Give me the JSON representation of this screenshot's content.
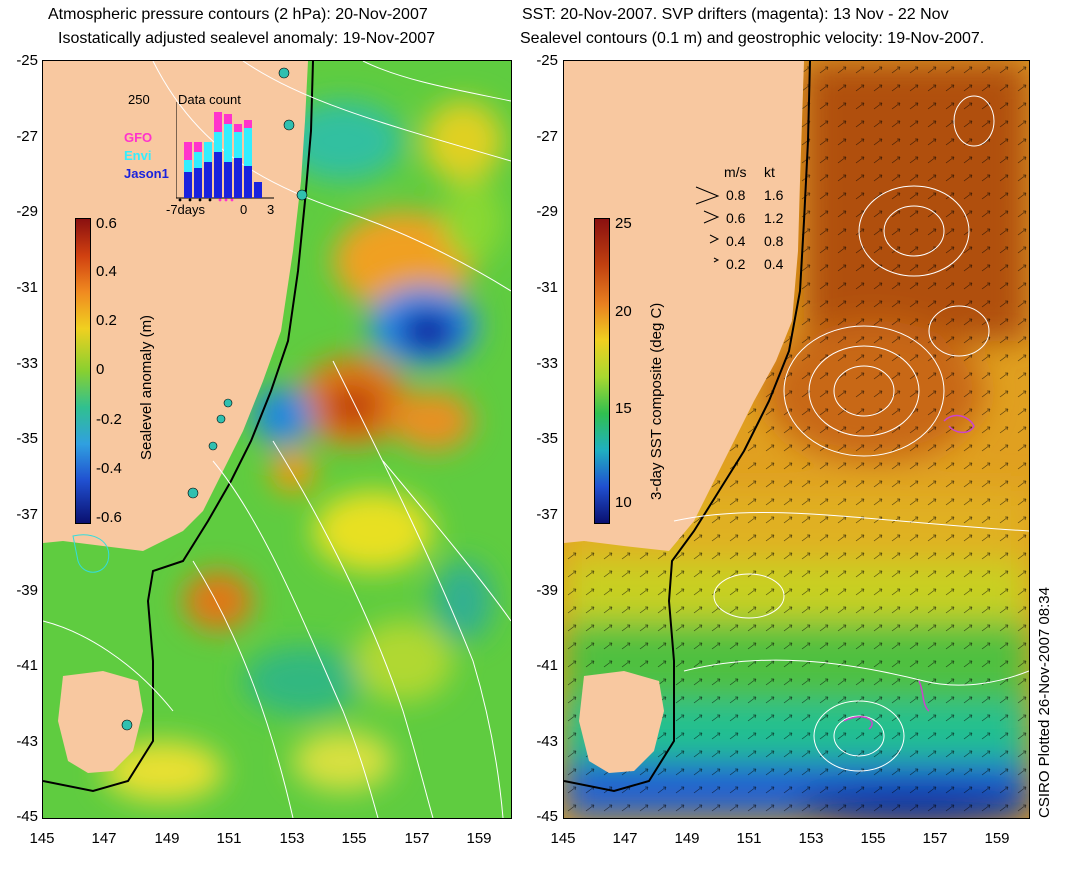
{
  "left_panel": {
    "title_line1": "Atmospheric pressure contours (2 hPa): 20-Nov-2007",
    "title_line2": "Isostatically adjusted sealevel anomaly: 19-Nov-2007",
    "colorbar_label": "Sealevel anomaly (m)",
    "colorbar_ticks": [
      "0.6",
      "0.4",
      "0.2",
      "0",
      "-0.2",
      "-0.4",
      "-0.6"
    ],
    "inset": {
      "title": "Data count",
      "ymax_label": "250",
      "legend": [
        {
          "name": "GFO",
          "color": "#ff33cc"
        },
        {
          "name": "Envi",
          "color": "#33eeff"
        },
        {
          "name": "Jason1",
          "color": "#1a22dd"
        }
      ],
      "x_labels": [
        "-7days",
        "0",
        "3"
      ]
    }
  },
  "right_panel": {
    "title_line1": "SST: 20-Nov-2007. SVP drifters (magenta): 13 Nov - 22 Nov",
    "title_line2": "Sealevel contours (0.1 m) and geostrophic velocity: 19-Nov-2007.",
    "colorbar_label": "3-day SST composite (deg C)",
    "colorbar_ticks": [
      "25",
      "20",
      "15",
      "10"
    ],
    "velocity_legend": {
      "header_ms": "m/s",
      "header_kt": "kt",
      "rows": [
        {
          "ms": "0.8",
          "kt": "1.6"
        },
        {
          "ms": "0.6",
          "kt": "1.2"
        },
        {
          "ms": "0.4",
          "kt": "0.8"
        },
        {
          "ms": "0.2",
          "kt": "0.4"
        }
      ]
    }
  },
  "y_ticks": [
    "-25",
    "-27",
    "-29",
    "-31",
    "-33",
    "-35",
    "-37",
    "-39",
    "-41",
    "-43",
    "-45"
  ],
  "x_ticks": [
    "145",
    "147",
    "149",
    "151",
    "153",
    "155",
    "157",
    "159"
  ],
  "side_label": "CSIRO Plotted 26-Nov-2007 08:34",
  "colors": {
    "land": "#f8c8a0",
    "sea_mid": "#55c844",
    "contour": "#ffffff",
    "coast": "#000000"
  }
}
